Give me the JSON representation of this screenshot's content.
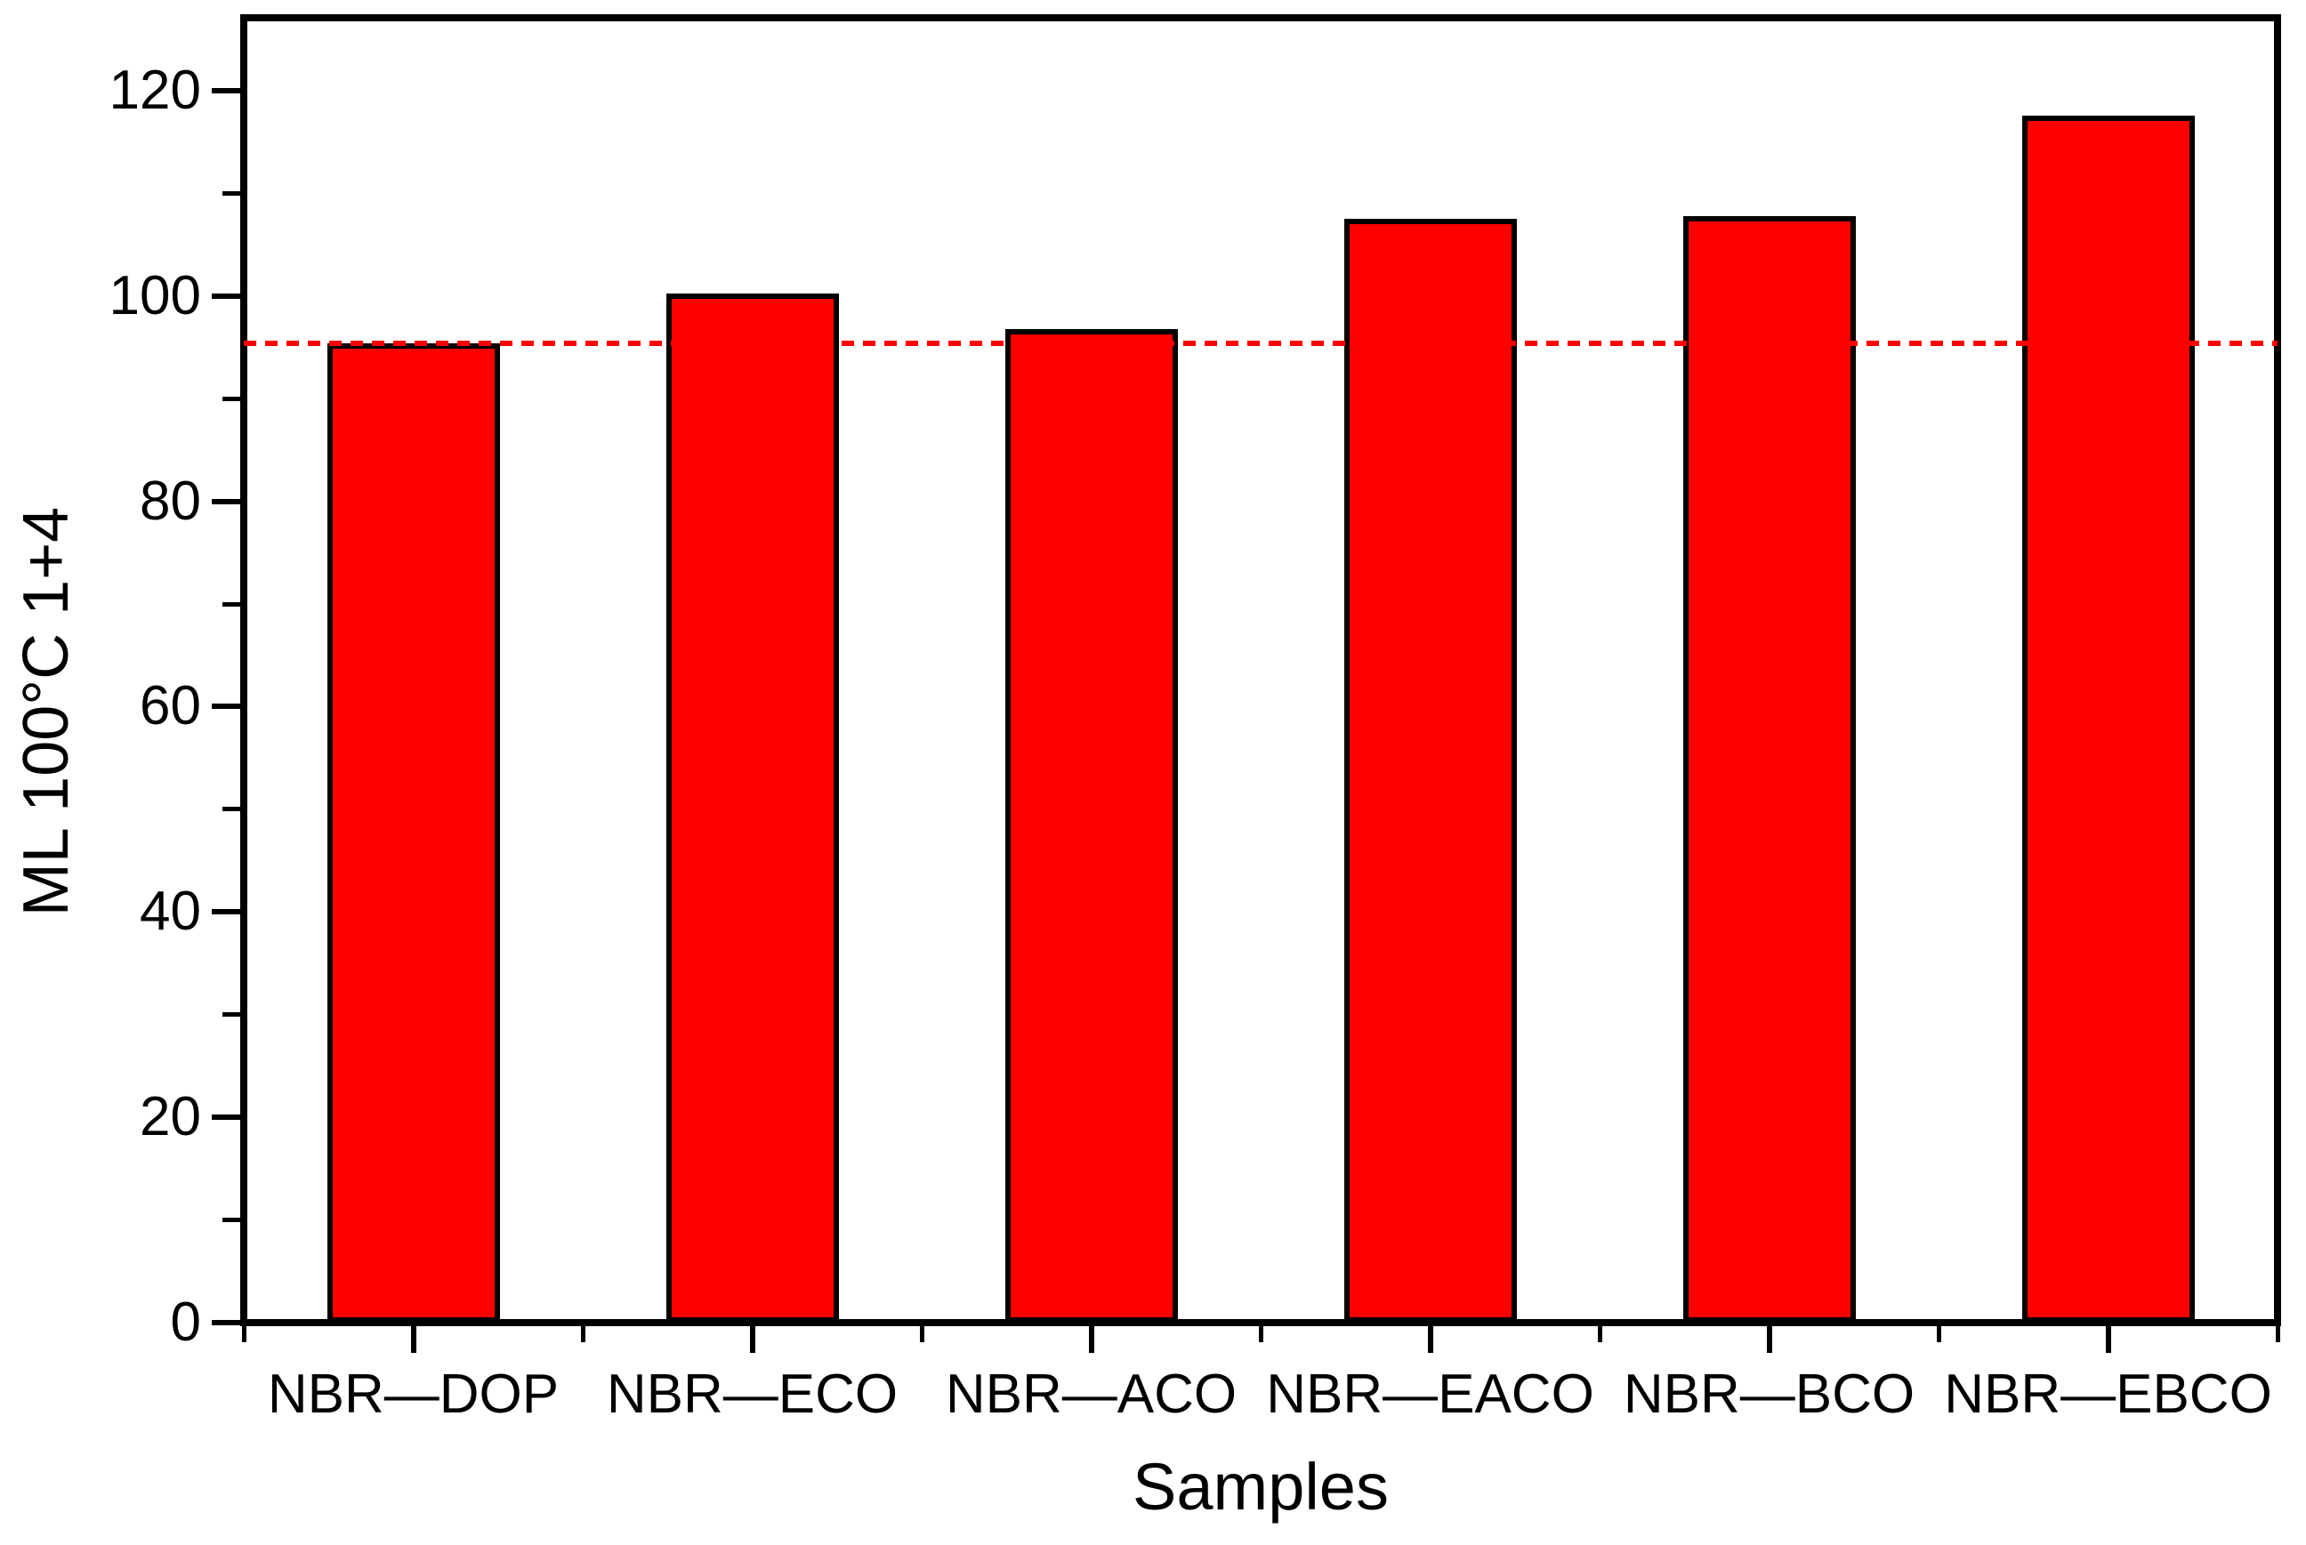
{
  "chart_data": {
    "type": "bar",
    "categories": [
      "NBR—DOP",
      "NBR—ECO",
      "NBR—ACO",
      "NBR—EACO",
      "NBR—BCO",
      "NBR—EBCO"
    ],
    "values": [
      95.4,
      100.2,
      96.8,
      107.5,
      107.8,
      117.6
    ],
    "xlabel": "Samples",
    "ylabel": "ML 100°C 1+4",
    "ylim": [
      0,
      127.1
    ],
    "yticks_major": [
      0,
      20,
      40,
      60,
      80,
      100,
      120
    ],
    "yticks_minor": [
      10,
      30,
      50,
      70,
      90,
      110
    ],
    "reference_line": {
      "value": 95.4,
      "style": "dashed",
      "color": "#ff0000"
    },
    "bar_color": "#fe0000",
    "bar_edge_color": "#000000",
    "frame_color": "#000000",
    "grid": false,
    "legend_position": "none"
  }
}
